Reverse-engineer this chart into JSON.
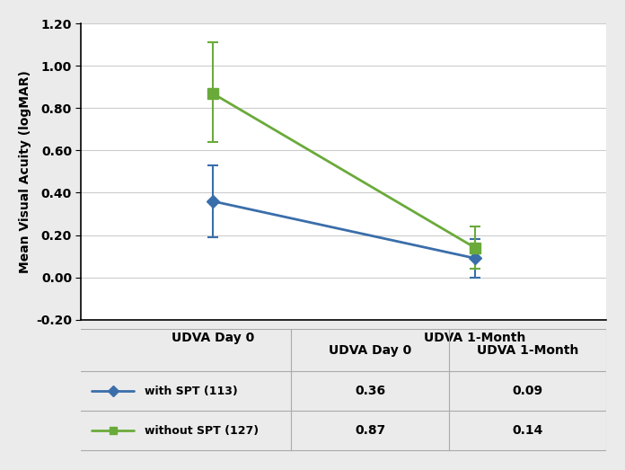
{
  "x_labels": [
    "UDVA Day 0",
    "UDVA 1-Month"
  ],
  "x_positions": [
    0,
    1
  ],
  "series": [
    {
      "label": "with SPT (113)",
      "values": [
        0.36,
        0.09
      ],
      "yerr_low": [
        0.17,
        0.09
      ],
      "yerr_high": [
        0.17,
        0.09
      ],
      "color": "#3a6eaa",
      "marker": "D",
      "markersize": 7,
      "linewidth": 2.0
    },
    {
      "label": "without SPT (127)",
      "values": [
        0.87,
        0.14
      ],
      "yerr_low": [
        0.23,
        0.1
      ],
      "yerr_high": [
        0.24,
        0.1
      ],
      "color": "#6aaa3a",
      "marker": "s",
      "markersize": 8,
      "linewidth": 2.0
    }
  ],
  "ylabel": "Mean Visual Acuity (logMAR)",
  "ylim": [
    -0.2,
    1.2
  ],
  "yticks": [
    -0.2,
    0.0,
    0.2,
    0.4,
    0.6,
    0.8,
    1.0,
    1.2
  ],
  "table_values": [
    [
      "0.36",
      "0.09"
    ],
    [
      "0.87",
      "0.14"
    ]
  ],
  "table_row_labels": [
    "with SPT (113)",
    "without SPT (127)"
  ],
  "table_col_labels": [
    "UDVA Day 0",
    "UDVA 1-Month"
  ],
  "background_color": "#ebebeb",
  "plot_bg_color": "#ffffff",
  "grid_color": "#cccccc"
}
